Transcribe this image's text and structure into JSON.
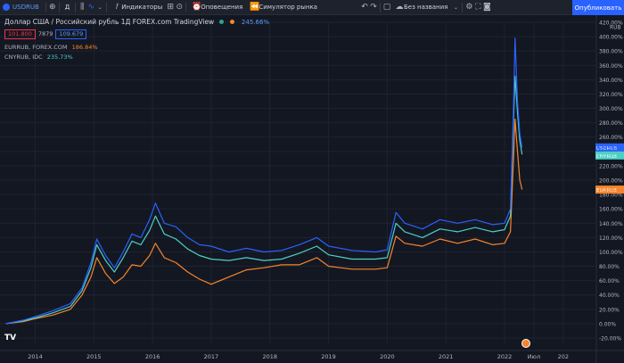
{
  "toolbar": {
    "symbol": "USDRUB",
    "interval": "Д",
    "indicators_label": "Индикаторы",
    "alerts_label": "Оповещения",
    "replay_label": "Симулятор рынка",
    "layout_name": "Без названия",
    "publish_label": "Опубликовать"
  },
  "legend": {
    "title": "Доллар США / Российский рубль  1Д  FOREX.com  TradingView",
    "change": "245.66%",
    "bid": "101.800",
    "spread": "7879",
    "ask": "109.679",
    "compare": [
      {
        "name": "EURRUB, FOREX.COM",
        "value": "186.84%",
        "color": "#f7842a"
      },
      {
        "name": "CNYRUB, IDC",
        "value": "235.73%",
        "color": "#4dd0c4"
      }
    ]
  },
  "colors": {
    "usdrub": "#2962ff",
    "eurrub": "#f7842a",
    "cnyrub": "#4dd0c4",
    "background": "#131722",
    "grid": "#1f2330"
  },
  "chart_data": {
    "type": "line",
    "y_unit": "%",
    "currency_label": "RUB",
    "ylim": [
      -20,
      420
    ],
    "y_ticks": [
      "420.00%",
      "400.00%",
      "380.00%",
      "360.00%",
      "340.00%",
      "320.00%",
      "300.00%",
      "280.00%",
      "260.00%",
      "240.00%",
      "220.00%",
      "200.00%",
      "180.00%",
      "160.00%",
      "140.00%",
      "120.00%",
      "100.00%",
      "80.00%",
      "60.00%",
      "40.00%",
      "20.00%",
      "0.00%",
      "-20.00%"
    ],
    "x_ticks": [
      "2014",
      "2015",
      "2016",
      "2017",
      "2018",
      "2019",
      "2020",
      "2021",
      "2022",
      "Июл",
      "202"
    ],
    "grid": true,
    "last_value_labels": [
      {
        "series": "USDRUB",
        "text": "+245.66%",
        "color": "#2962ff"
      },
      {
        "series": "CNYRUB",
        "text": "+235.73%",
        "color": "#4dd0c4"
      },
      {
        "series": "EURRUB",
        "text": "+186.84%",
        "color": "#f7842a"
      }
    ],
    "series": [
      {
        "name": "USDRUB",
        "x": [
          2013.5,
          2013.8,
          2014.0,
          2014.3,
          2014.6,
          2014.8,
          2014.95,
          2015.05,
          2015.2,
          2015.35,
          2015.5,
          2015.65,
          2015.8,
          2015.95,
          2016.05,
          2016.2,
          2016.4,
          2016.6,
          2016.8,
          2017.0,
          2017.3,
          2017.6,
          2017.9,
          2018.2,
          2018.5,
          2018.8,
          2019.0,
          2019.4,
          2019.8,
          2020.0,
          2020.15,
          2020.3,
          2020.6,
          2020.9,
          2021.2,
          2021.5,
          2021.8,
          2022.0,
          2022.1,
          2022.15,
          2022.18,
          2022.22,
          2022.26,
          2022.3
        ],
        "y": [
          0,
          5,
          10,
          18,
          28,
          50,
          85,
          118,
          95,
          78,
          100,
          125,
          120,
          145,
          168,
          140,
          135,
          120,
          110,
          108,
          100,
          105,
          100,
          102,
          110,
          120,
          108,
          102,
          100,
          103,
          155,
          140,
          132,
          145,
          140,
          145,
          138,
          140,
          160,
          295,
          398,
          310,
          265,
          245.66
        ]
      },
      {
        "name": "EURRUB",
        "x": [
          2013.5,
          2013.8,
          2014.0,
          2014.3,
          2014.6,
          2014.8,
          2014.95,
          2015.05,
          2015.2,
          2015.35,
          2015.5,
          2015.65,
          2015.8,
          2015.95,
          2016.05,
          2016.2,
          2016.4,
          2016.6,
          2016.8,
          2017.0,
          2017.3,
          2017.6,
          2017.9,
          2018.2,
          2018.5,
          2018.8,
          2019.0,
          2019.4,
          2019.8,
          2020.0,
          2020.15,
          2020.3,
          2020.6,
          2020.9,
          2021.2,
          2021.5,
          2021.8,
          2022.0,
          2022.1,
          2022.15,
          2022.18,
          2022.22,
          2022.26,
          2022.3
        ],
        "y": [
          0,
          3,
          7,
          12,
          20,
          40,
          65,
          92,
          70,
          56,
          65,
          82,
          80,
          95,
          112,
          92,
          85,
          72,
          62,
          55,
          65,
          75,
          78,
          82,
          82,
          92,
          80,
          76,
          76,
          78,
          122,
          112,
          108,
          118,
          112,
          118,
          110,
          112,
          128,
          225,
          285,
          240,
          200,
          186.84
        ]
      },
      {
        "name": "CNYRUB",
        "x": [
          2013.5,
          2013.8,
          2014.0,
          2014.3,
          2014.6,
          2014.8,
          2014.95,
          2015.05,
          2015.2,
          2015.35,
          2015.5,
          2015.65,
          2015.8,
          2015.95,
          2016.05,
          2016.2,
          2016.4,
          2016.6,
          2016.8,
          2017.0,
          2017.3,
          2017.6,
          2017.9,
          2018.2,
          2018.5,
          2018.8,
          2019.0,
          2019.4,
          2019.8,
          2020.0,
          2020.15,
          2020.3,
          2020.6,
          2020.9,
          2021.2,
          2021.5,
          2021.8,
          2022.0,
          2022.1,
          2022.15,
          2022.18,
          2022.22,
          2022.26,
          2022.3
        ],
        "y": [
          0,
          4,
          8,
          15,
          24,
          46,
          78,
          110,
          88,
          72,
          92,
          115,
          110,
          130,
          150,
          125,
          118,
          104,
          95,
          90,
          88,
          92,
          88,
          90,
          98,
          108,
          96,
          90,
          90,
          92,
          140,
          128,
          120,
          132,
          128,
          134,
          128,
          131,
          150,
          278,
          345,
          295,
          255,
          235.73
        ]
      }
    ]
  }
}
